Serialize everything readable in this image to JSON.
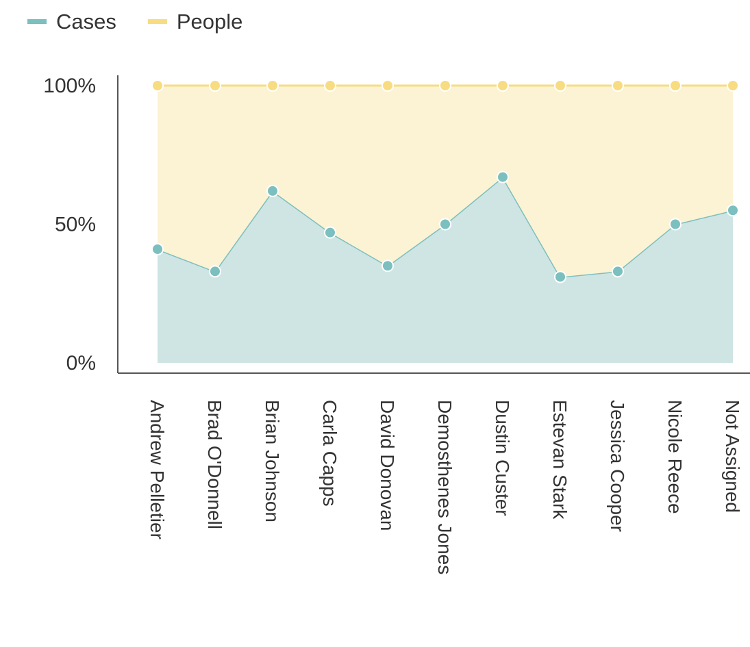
{
  "chart_data": {
    "type": "stacked_area",
    "categories": [
      "Andrew Pelletier",
      "Brad O'Donnell",
      "Brian Johnson",
      "Carla Capps",
      "David Donovan",
      "Demosthenes Jones",
      "Dustin Custer",
      "Estevan Stark",
      "Jessica Cooper",
      "Nicole Reece",
      "Not Assigned"
    ],
    "series": [
      {
        "name": "Cases",
        "color": "#7bbfbf",
        "values": [
          41,
          33,
          62,
          47,
          35,
          50,
          67,
          31,
          33,
          50,
          55
        ]
      },
      {
        "name": "People",
        "color": "#f7dc82",
        "values": [
          59,
          67,
          38,
          53,
          65,
          50,
          33,
          69,
          67,
          50,
          45
        ]
      }
    ],
    "ylim": [
      0,
      100
    ],
    "yticks": [
      {
        "value": 0,
        "label": "0%"
      },
      {
        "value": 50,
        "label": "50%"
      },
      {
        "value": 100,
        "label": "100%"
      }
    ],
    "legend": "top-left"
  }
}
